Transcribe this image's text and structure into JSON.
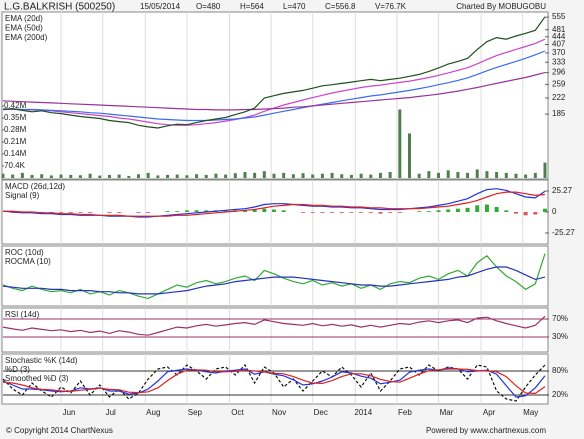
{
  "chart_data": [
    {
      "type": "line",
      "title": "L.G.BALKRISH (500250)",
      "date": "15/05/2014",
      "ohlcv": [
        "O=480",
        "H=564",
        "L=470",
        "C=556.8",
        "V=76.7K"
      ],
      "credit": "Charted By MOBUGOBU",
      "xlim": [
        0,
        56
      ],
      "ylim": [
        110,
        575
      ],
      "log": true,
      "yticks": [
        555,
        481,
        444,
        407,
        370,
        333,
        296,
        259,
        222,
        185
      ],
      "close": {
        "color": "#1f4f1f",
        "values": [
          195,
          197,
          193,
          190,
          192,
          188,
          186,
          183,
          180,
          178,
          176,
          172,
          170,
          168,
          163,
          160,
          158,
          162,
          165,
          164,
          168,
          172,
          175,
          178,
          184,
          190,
          198,
          222,
          228,
          234,
          238,
          242,
          248,
          255,
          258,
          262,
          266,
          270,
          274,
          270,
          274,
          278,
          284,
          290,
          300,
          312,
          326,
          336,
          348,
          385,
          420,
          440,
          432,
          448,
          462,
          478,
          556.8
        ]
      },
      "series": [
        {
          "name": "EMA (20d)",
          "color": "#cc44cc",
          "values": [
            195,
            195,
            195,
            194,
            193,
            192,
            190,
            188,
            186,
            184,
            182,
            180,
            177,
            175,
            172,
            169,
            166,
            164,
            163,
            163,
            164,
            166,
            168,
            171,
            174,
            178,
            183,
            191,
            198,
            205,
            211,
            217,
            223,
            229,
            235,
            240,
            245,
            250,
            254,
            257,
            261,
            265,
            269,
            274,
            280,
            287,
            295,
            304,
            313,
            327,
            343,
            359,
            372,
            385,
            398,
            412,
            432
          ]
        },
        {
          "name": "EMA (50d)",
          "color": "#3a6cf0",
          "values": [
            196,
            196,
            195,
            195,
            194,
            193,
            192,
            191,
            190,
            188,
            187,
            185,
            183,
            181,
            179,
            177,
            175,
            174,
            173,
            172,
            172,
            172,
            173,
            174,
            175,
            177,
            179,
            183,
            187,
            191,
            195,
            199,
            203,
            207,
            211,
            215,
            219,
            223,
            227,
            230,
            234,
            238,
            242,
            247,
            252,
            258,
            264,
            271,
            279,
            290,
            302,
            314,
            325,
            336,
            348,
            362,
            378
          ]
        },
        {
          "name": "EMA (200d)",
          "color": "#993399",
          "values": [
            215,
            214,
            213,
            212,
            211,
            210,
            209,
            208,
            207,
            206,
            205,
            204,
            203,
            202,
            201,
            200,
            199,
            198,
            197,
            196,
            195,
            195,
            194,
            194,
            194,
            195,
            195,
            196,
            197,
            198,
            200,
            201,
            203,
            205,
            207,
            209,
            211,
            213,
            215,
            217,
            219,
            221,
            223,
            226,
            229,
            232,
            236,
            240,
            245,
            250,
            256,
            262,
            268,
            274,
            280,
            288,
            296
          ]
        }
      ],
      "volume": {
        "color": "#4f7f4f",
        "ylim": [
          0,
          490000
        ],
        "yticks": [
          {
            "value": 420000,
            "label": "0.42M"
          },
          {
            "value": 350000,
            "label": "0.35M"
          },
          {
            "value": 280000,
            "label": "0.28M"
          },
          {
            "value": 210000,
            "label": "0.21M"
          },
          {
            "value": 140000,
            "label": "0.14M"
          },
          {
            "value": 70400,
            "label": "70.4K"
          }
        ],
        "values": [
          25000,
          20000,
          30000,
          18000,
          22000,
          15000,
          20000,
          18000,
          16000,
          25000,
          14000,
          18000,
          20000,
          12000,
          22000,
          30000,
          15000,
          18000,
          20000,
          16000,
          22000,
          18000,
          25000,
          20000,
          28000,
          35000,
          30000,
          40000,
          25000,
          30000,
          22000,
          28000,
          20000,
          25000,
          30000,
          22000,
          18000,
          25000,
          20000,
          30000,
          35000,
          400000,
          260000,
          25000,
          40000,
          30000,
          45000,
          35000,
          30000,
          50000,
          40000,
          35000,
          30000,
          25000,
          20000,
          30000,
          90000
        ]
      }
    },
    {
      "type": "line",
      "xlim": [
        0,
        56
      ],
      "ylim": [
        -37.3,
        37.3
      ],
      "yticks": [
        25.27,
        0,
        -25.27
      ],
      "series": [
        {
          "name": "MACD (26d,12d)",
          "color": "#2233dd",
          "values": [
            1,
            0,
            -1,
            -1,
            -2,
            -2,
            -3,
            -3,
            -4,
            -4,
            -4,
            -5,
            -5,
            -5,
            -6,
            -6,
            -5,
            -4,
            -3,
            -2,
            -1,
            0,
            1,
            2,
            3,
            4,
            6,
            9,
            10,
            10,
            9,
            8,
            7,
            7,
            6,
            6,
            5,
            5,
            4,
            3,
            3,
            3,
            4,
            5,
            6,
            8,
            10,
            13,
            16,
            22,
            27,
            28,
            26,
            22,
            18,
            17,
            25
          ]
        },
        {
          "name": "Signal (9)",
          "color": "#dd2222",
          "values": [
            1,
            1,
            0,
            0,
            -1,
            -1,
            -2,
            -2,
            -3,
            -3,
            -4,
            -4,
            -4,
            -5,
            -5,
            -5,
            -5,
            -5,
            -4,
            -4,
            -3,
            -2,
            -1,
            0,
            1,
            2,
            3,
            5,
            7,
            8,
            9,
            9,
            8,
            8,
            7,
            7,
            6,
            6,
            5,
            5,
            4,
            4,
            4,
            4,
            5,
            6,
            7,
            9,
            11,
            14,
            18,
            22,
            24,
            24,
            22,
            20,
            21
          ]
        }
      ],
      "histogram": {
        "up_color": "#33aa33",
        "down_color": "#dd5555",
        "values": [
          0,
          -1,
          -1,
          -1,
          -1,
          -1,
          -1,
          -1,
          -1,
          -1,
          0,
          -1,
          -1,
          0,
          -1,
          -1,
          0,
          1,
          1,
          2,
          2,
          2,
          2,
          2,
          2,
          2,
          3,
          4,
          3,
          2,
          0,
          -1,
          -1,
          -1,
          -1,
          -1,
          -1,
          -1,
          -1,
          -2,
          -1,
          -1,
          0,
          1,
          1,
          2,
          3,
          4,
          5,
          8,
          9,
          6,
          2,
          -2,
          -4,
          -3,
          4
        ]
      }
    },
    {
      "type": "line",
      "xlim": [
        0,
        56
      ],
      "ylim": [
        -15,
        35
      ],
      "series": [
        {
          "name": "ROC (10d)",
          "color": "#33aa33",
          "values": [
            2,
            -1,
            -3,
            1,
            -2,
            -4,
            -3,
            -5,
            -2,
            -6,
            -4,
            -7,
            -3,
            -5,
            -8,
            -10,
            -6,
            -2,
            2,
            0,
            4,
            6,
            3,
            5,
            8,
            10,
            6,
            15,
            12,
            8,
            5,
            3,
            6,
            2,
            4,
            1,
            3,
            -1,
            2,
            -2,
            3,
            5,
            4,
            8,
            10,
            7,
            12,
            15,
            10,
            22,
            28,
            18,
            10,
            5,
            -2,
            3,
            30
          ]
        },
        {
          "name": "ROCMA (10)",
          "color": "#2233bb",
          "values": [
            1,
            0,
            -1,
            -1,
            -1,
            -2,
            -2,
            -3,
            -3,
            -3,
            -4,
            -4,
            -5,
            -5,
            -6,
            -6,
            -6,
            -5,
            -4,
            -3,
            -1,
            1,
            2,
            3,
            5,
            6,
            7,
            8,
            9,
            9,
            9,
            8,
            7,
            6,
            5,
            4,
            3,
            2,
            2,
            1,
            1,
            2,
            3,
            4,
            5,
            6,
            7,
            9,
            10,
            13,
            16,
            18,
            18,
            15,
            11,
            7,
            9
          ]
        }
      ]
    },
    {
      "type": "line",
      "xlim": [
        0,
        56
      ],
      "ylim": [
        0,
        90
      ],
      "yticks": [
        {
          "value": 70,
          "label": "70%"
        },
        {
          "value": 30,
          "label": "30%"
        }
      ],
      "level_color": "#993366",
      "series": [
        {
          "name": "RSI (14d)",
          "color": "#993366",
          "values": [
            52,
            48,
            45,
            50,
            47,
            44,
            46,
            42,
            45,
            40,
            43,
            38,
            44,
            41,
            36,
            34,
            40,
            46,
            52,
            50,
            55,
            58,
            54,
            57,
            60,
            62,
            58,
            68,
            64,
            60,
            58,
            56,
            60,
            55,
            58,
            54,
            57,
            52,
            56,
            52,
            56,
            60,
            58,
            63,
            66,
            62,
            66,
            68,
            62,
            72,
            74,
            66,
            60,
            55,
            50,
            56,
            76
          ]
        }
      ]
    },
    {
      "type": "line",
      "xlim": [
        0,
        56
      ],
      "ylim": [
        0,
        120
      ],
      "yticks": [
        {
          "value": 80,
          "label": "80%"
        },
        {
          "value": 20,
          "label": "20%"
        }
      ],
      "level_color": "#333333",
      "xticks": [
        {
          "value": 6.0,
          "label": "Jun"
        },
        {
          "value": 10.3,
          "label": "Jul"
        },
        {
          "value": 14.7,
          "label": "Aug"
        },
        {
          "value": 19.0,
          "label": "Sep"
        },
        {
          "value": 23.4,
          "label": "Oct"
        },
        {
          "value": 27.7,
          "label": "Nov"
        },
        {
          "value": 32.0,
          "label": "Dec"
        },
        {
          "value": 36.4,
          "label": "2014"
        },
        {
          "value": 40.7,
          "label": "Feb"
        },
        {
          "value": 45.0,
          "label": "Mar"
        },
        {
          "value": 49.4,
          "label": "Apr"
        },
        {
          "value": 53.7,
          "label": "May"
        }
      ],
      "series": [
        {
          "name": "Stochastic %K (14d)",
          "color": "#111111",
          "dash": true,
          "values": [
            60,
            35,
            20,
            50,
            30,
            15,
            40,
            25,
            55,
            20,
            45,
            15,
            35,
            10,
            25,
            60,
            85,
            90,
            70,
            95,
            80,
            60,
            85,
            90,
            70,
            95,
            50,
            90,
            75,
            40,
            60,
            30,
            55,
            80,
            65,
            90,
            70,
            40,
            75,
            30,
            55,
            85,
            90,
            70,
            95,
            80,
            90,
            85,
            60,
            95,
            90,
            30,
            10,
            5,
            40,
            70,
            95
          ]
        },
        {
          "name": "%D (3)",
          "color": "#2233dd",
          "values": [
            55,
            45,
            35,
            35,
            33,
            30,
            28,
            30,
            38,
            35,
            38,
            30,
            30,
            22,
            25,
            35,
            55,
            78,
            82,
            85,
            82,
            78,
            75,
            80,
            82,
            85,
            72,
            78,
            72,
            68,
            58,
            45,
            48,
            55,
            65,
            78,
            75,
            67,
            62,
            48,
            52,
            57,
            77,
            82,
            85,
            82,
            88,
            85,
            78,
            80,
            82,
            72,
            43,
            15,
            18,
            38,
            68
          ]
        },
        {
          "name": "Smoothed %D (3)",
          "color": "#dd2222",
          "values": [
            52,
            50,
            45,
            38,
            34,
            33,
            30,
            29,
            32,
            34,
            37,
            34,
            33,
            27,
            26,
            28,
            38,
            56,
            72,
            82,
            83,
            82,
            78,
            78,
            79,
            82,
            80,
            78,
            74,
            73,
            66,
            57,
            50,
            49,
            56,
            66,
            73,
            73,
            68,
            59,
            54,
            52,
            62,
            72,
            81,
            83,
            85,
            85,
            84,
            81,
            80,
            78,
            66,
            43,
            25,
            24,
            41
          ]
        }
      ]
    }
  ],
  "footer": {
    "left": "© Copyright 2014 ChartNexus",
    "right": "Powered by www.chartnexus.com"
  }
}
